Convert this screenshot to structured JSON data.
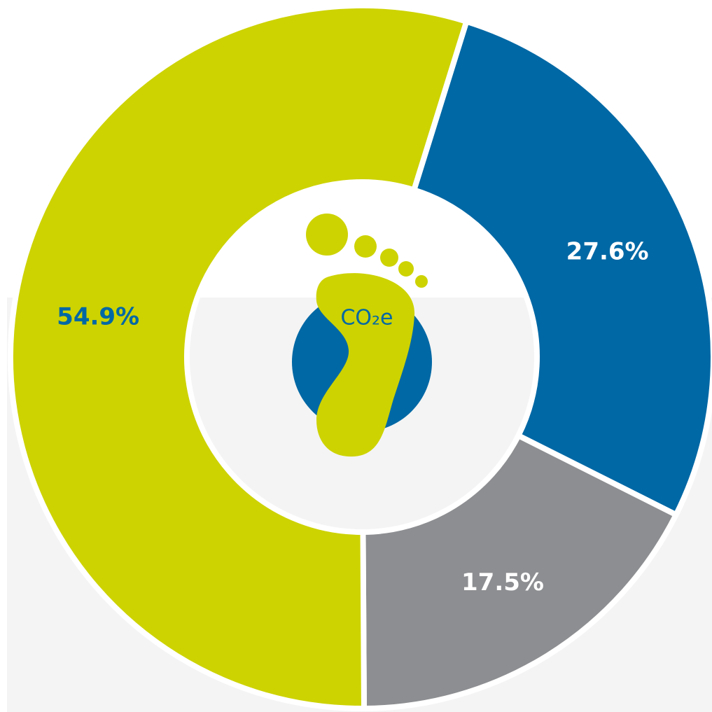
{
  "chart_data": {
    "type": "pie",
    "donut": true,
    "categories": [
      null,
      null,
      null
    ],
    "values": [
      27.6,
      17.5,
      54.9
    ],
    "value_labels": [
      "27.6%",
      "17.5%",
      "54.9%"
    ],
    "colors": [
      "#0068a5",
      "#8d8e91",
      "#cdd300"
    ],
    "label_colors": [
      "#ffffff",
      "#ffffff",
      "#0068a5"
    ],
    "center_label": "CO₂e"
  }
}
